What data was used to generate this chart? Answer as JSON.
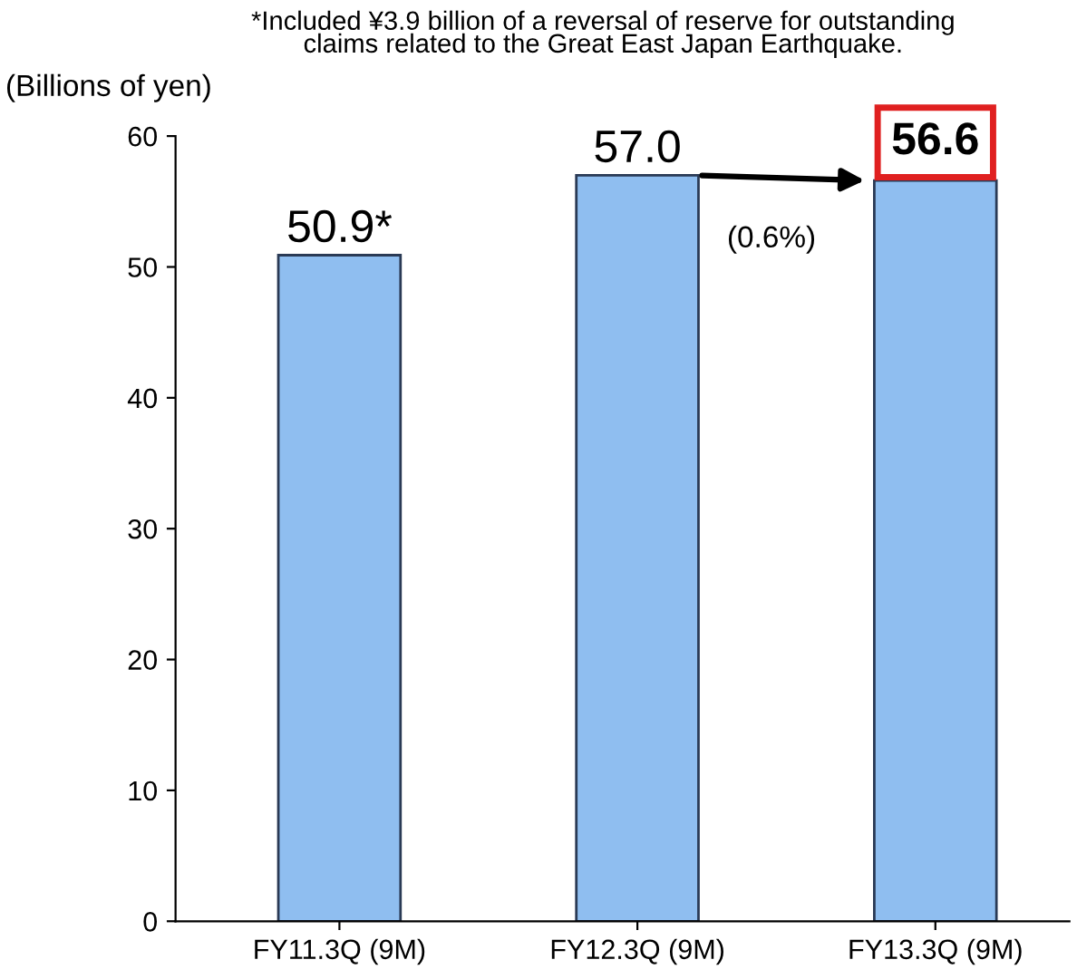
{
  "chart_data": {
    "type": "bar",
    "ylabel": "(Billions of yen)",
    "categories": [
      "FY11.3Q (9M)",
      "FY12.3Q (9M)",
      "FY13.3Q (9M)"
    ],
    "values": [
      50.9,
      57.0,
      56.6
    ],
    "value_labels": [
      "50.9*",
      "57.0",
      "56.6"
    ],
    "color": "#8fbef0",
    "ylim": [
      0,
      60
    ],
    "yticks": [
      0,
      10,
      20,
      30,
      40,
      50,
      60
    ],
    "grid": false,
    "annotations": [
      "*Included ¥3.9 billion of a reversal of reserve for outstanding\nclaims related to the Great East Japan Earthquake.",
      "(0.6%)"
    ]
  }
}
